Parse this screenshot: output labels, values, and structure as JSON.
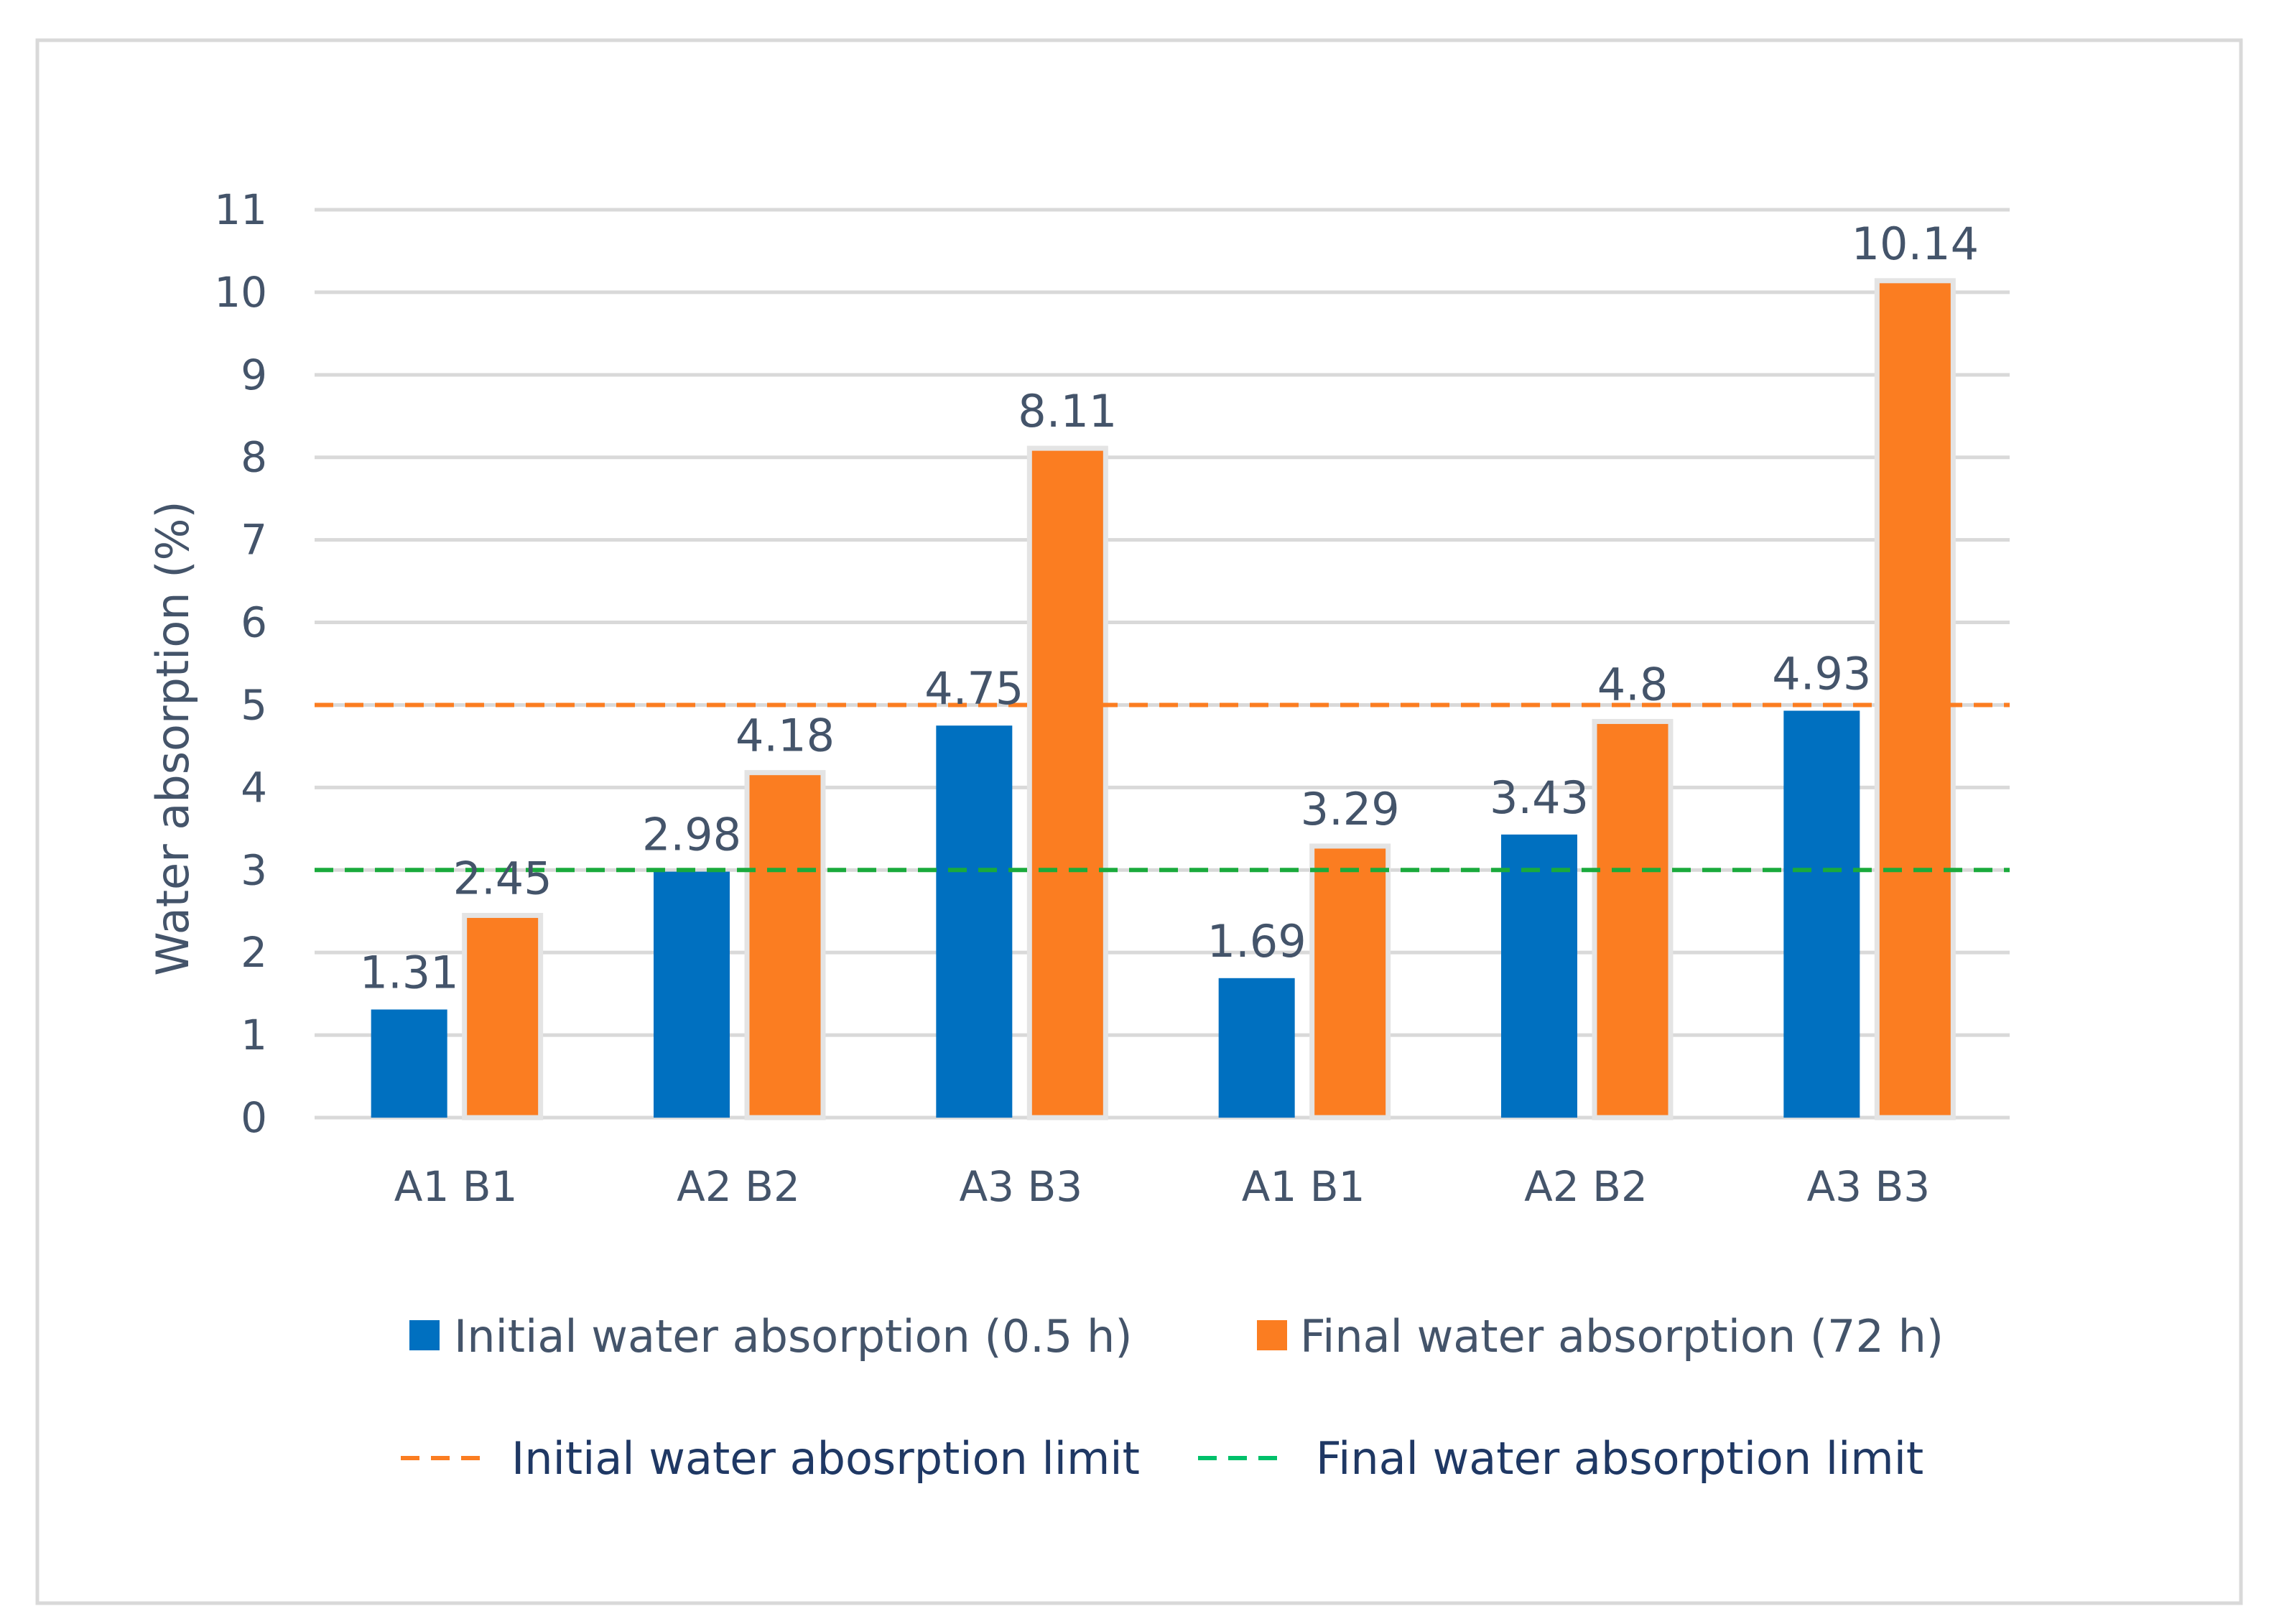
{
  "chart_data": {
    "type": "bar",
    "title": "",
    "xlabel": "",
    "ylabel": "Water absorption (%)",
    "ylim": [
      0,
      11
    ],
    "yticks": [
      0,
      1,
      2,
      3,
      4,
      5,
      6,
      7,
      8,
      9,
      10,
      11
    ],
    "grid": true,
    "categories": [
      "A1  B1",
      "A2 B2",
      "A3 B3",
      "A1  B1",
      "A2 B2",
      "A3 B3"
    ],
    "series": [
      {
        "name": "Initial water absorption (0.5 h)",
        "color": "#0070c0",
        "values": [
          1.31,
          2.98,
          4.75,
          1.69,
          3.43,
          4.93
        ]
      },
      {
        "name": "Final water absorption (72 h)",
        "color": "#fb7d21",
        "values": [
          2.45,
          4.18,
          8.11,
          3.29,
          4.8,
          10.14
        ]
      }
    ],
    "data_labels": {
      "initial": [
        "1.31",
        "2.98",
        "4.75",
        "1.69",
        "3.43",
        "4.93"
      ],
      "final": [
        "2.45",
        "4.18",
        "8.11",
        "3.29",
        "4.8",
        "10.14"
      ]
    },
    "reference_lines": [
      {
        "name": "Initial water abosrption limit",
        "value": 5,
        "color": "#fb7d21",
        "style": "dashed"
      },
      {
        "name": "Final water absorption limit",
        "value": 3,
        "color": "#1aaa3c",
        "style": "dashed"
      }
    ],
    "legend": {
      "placement": "bottom",
      "items": [
        {
          "label": "Initial water absorption (0.5 h)",
          "kind": "square",
          "color": "#0070c0"
        },
        {
          "label": "Final water absorption (72 h)",
          "kind": "square",
          "color": "#fb7d21"
        },
        {
          "label": "Initial water abosrption limit",
          "kind": "dash",
          "color": "#fb7d21"
        },
        {
          "label": "Final water absorption limit",
          "kind": "dash",
          "color": "#00c06a"
        }
      ]
    }
  }
}
